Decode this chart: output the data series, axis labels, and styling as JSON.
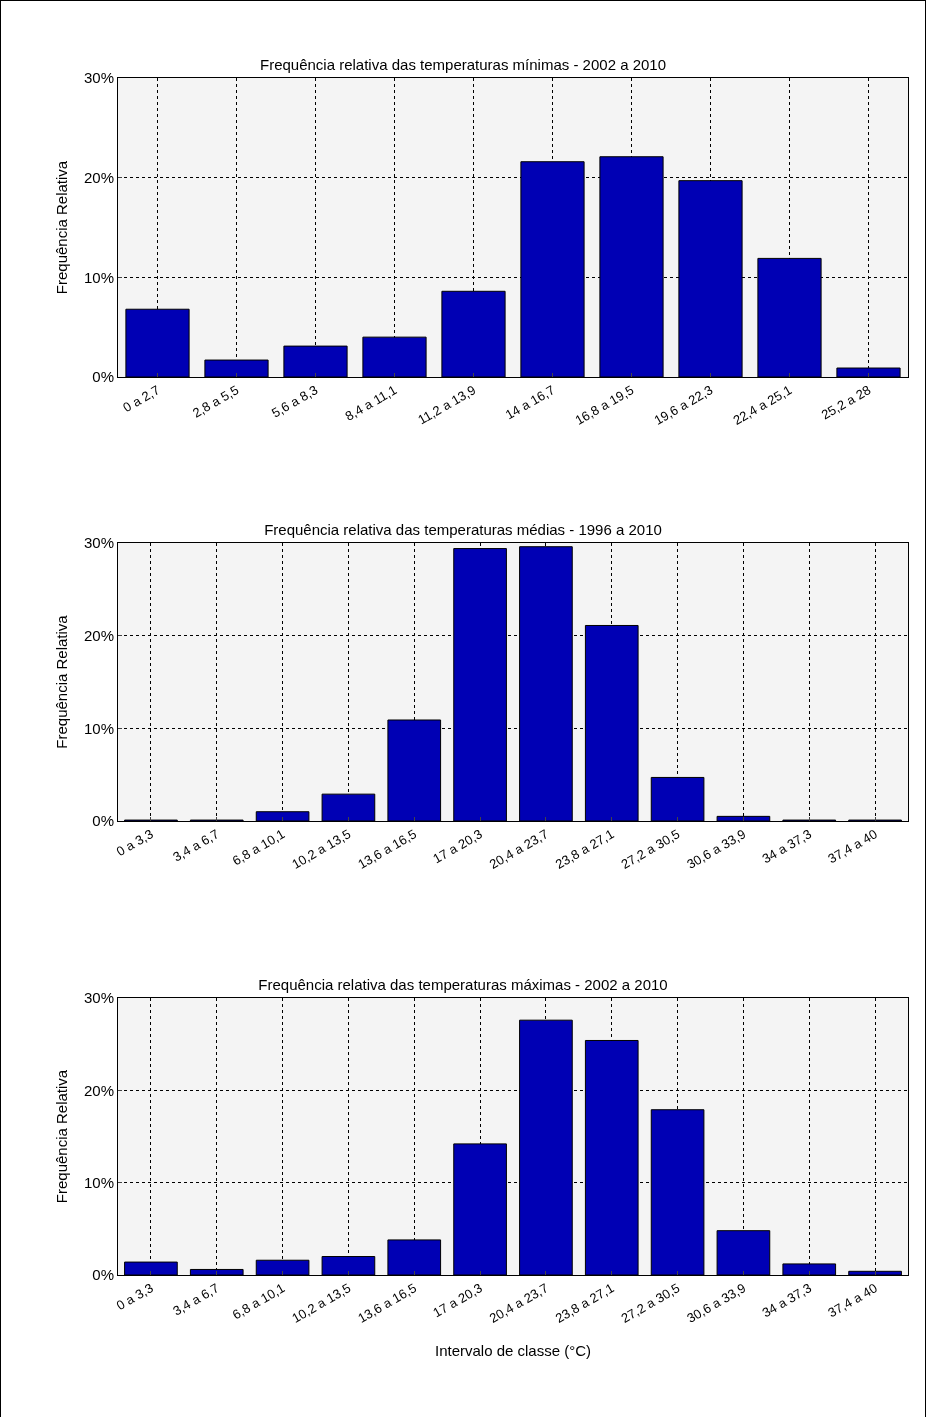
{
  "chart_data": [
    {
      "type": "bar",
      "title": "Frequência relativa das temperaturas mínimas - 2002 a 2010",
      "ylabel": "Frequência Relativa",
      "categories": [
        "0 a 2,7",
        "2,8 a 5,5",
        "5,6 a 8,3",
        "8,4 a 11,1",
        "11,2 a 13,9",
        "14 a 16,7",
        "16,8 a 19,5",
        "19,6 a 22,3",
        "22,4 a 25,1",
        "25,2 a 28"
      ],
      "values": [
        6.8,
        1.7,
        3.1,
        4.0,
        8.6,
        21.6,
        22.1,
        19.7,
        11.9,
        0.9
      ],
      "color": "#0000b4",
      "ylim": [
        0,
        30
      ],
      "yticks": [
        {
          "value": 0,
          "label": "0%"
        },
        {
          "value": 10,
          "label": "10%"
        },
        {
          "value": 20,
          "label": "20%"
        },
        {
          "value": 30,
          "label": "30%"
        }
      ],
      "grid": true
    },
    {
      "type": "bar",
      "title": "Frequência relativa das temperaturas médias - 1996 a 2010",
      "ylabel": "Frequência Relativa",
      "categories": [
        "0 a 3,3",
        "3,4 a 6,7",
        "6,8 a 10,1",
        "10,2 a 13,5",
        "13,6 a 16,5",
        "17 a 20,3",
        "20,4 a 23,7",
        "23,8 a 27,1",
        "27,2 a 30,5",
        "30,6 a 33,9",
        "34 a 37,3",
        "37,4 a 40"
      ],
      "values": [
        0.1,
        0.1,
        1.0,
        2.9,
        10.9,
        29.4,
        29.6,
        21.1,
        4.7,
        0.5,
        0.1,
        0.1
      ],
      "color": "#0000b4",
      "ylim": [
        0,
        30
      ],
      "yticks": [
        {
          "value": 0,
          "label": "0%"
        },
        {
          "value": 10,
          "label": "10%"
        },
        {
          "value": 20,
          "label": "20%"
        },
        {
          "value": 30,
          "label": "30%"
        }
      ],
      "grid": true
    },
    {
      "type": "bar",
      "title": "Frequência relativa das temperaturas máximas - 2002 a 2010",
      "ylabel": "Frequência Relativa",
      "xlabel": "Intervalo de classe (°C)",
      "categories": [
        "0 a 3,3",
        "3,4 a 6,7",
        "6,8 a 10,1",
        "10,2 a 13,5",
        "13,6 a 16,5",
        "17 a 20,3",
        "20,4 a 23,7",
        "23,8 a 27,1",
        "27,2 a 30,5",
        "30,6 a 33,9",
        "34 a 37,3",
        "37,4 a 40"
      ],
      "values": [
        1.4,
        0.6,
        1.6,
        2.0,
        3.8,
        14.2,
        27.6,
        25.4,
        17.9,
        4.8,
        1.2,
        0.4
      ],
      "color": "#0000b4",
      "ylim": [
        0,
        30
      ],
      "yticks": [
        {
          "value": 0,
          "label": "0%"
        },
        {
          "value": 10,
          "label": "10%"
        },
        {
          "value": 20,
          "label": "20%"
        },
        {
          "value": 30,
          "label": "30%"
        }
      ],
      "grid": true
    }
  ]
}
